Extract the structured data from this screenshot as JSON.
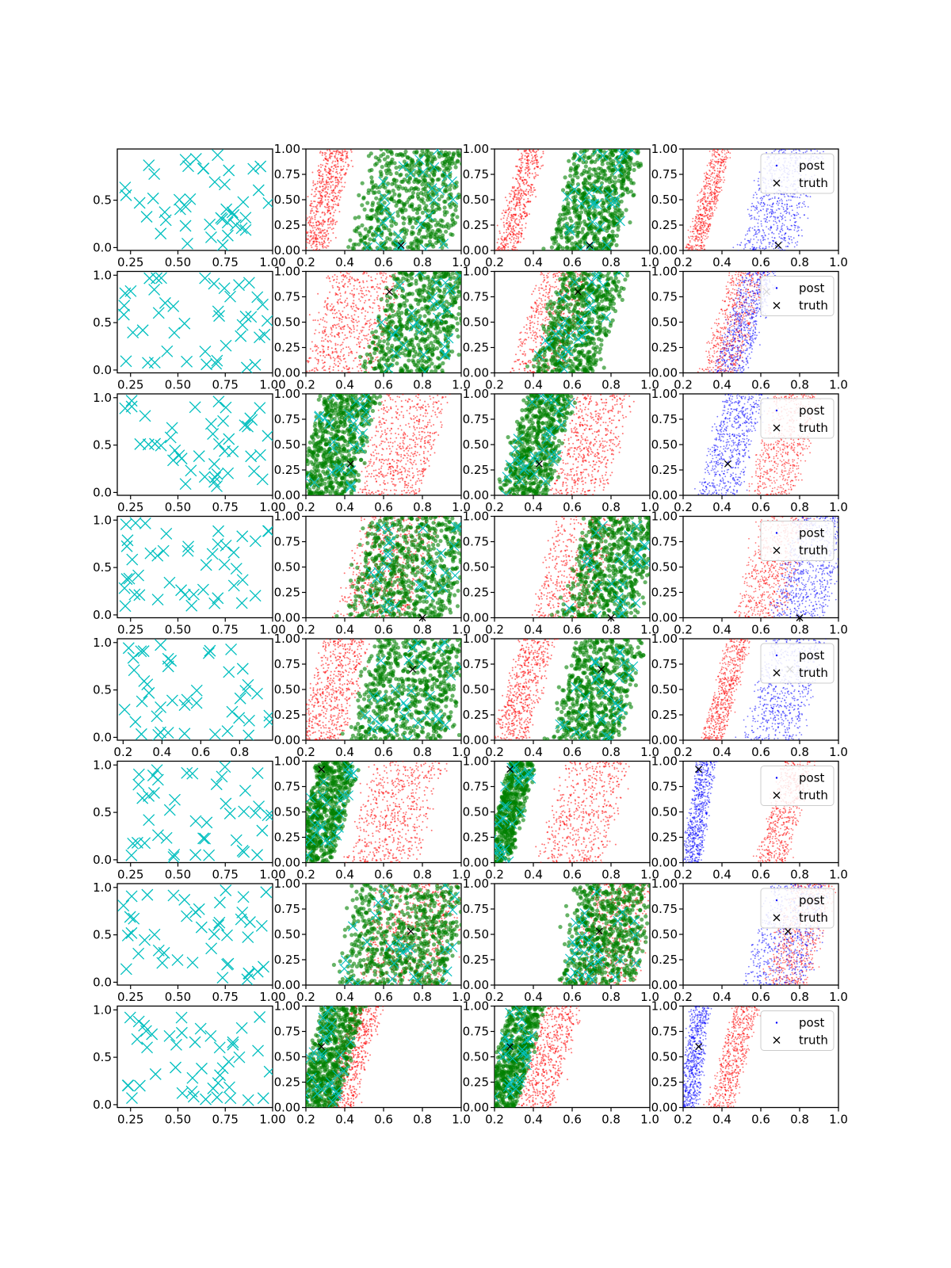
{
  "figure": {
    "rows": 8,
    "cols": 4,
    "description_colors": {
      "cyan": "#00bfbf",
      "green": "#008000",
      "red": "#ff0000",
      "blue": "#0000ff",
      "truth": "#000000"
    }
  },
  "chart_data": {
    "type": "scatter",
    "grid": false,
    "col_types": [
      "design_points",
      "samples_overlay",
      "samples_overlay",
      "posterior_vs_truth"
    ],
    "legend": {
      "entries": [
        "post",
        "truth"
      ],
      "placement": "upper right",
      "column": 3
    },
    "rows": [
      {
        "truth": [
          0.69,
          0.05
        ],
        "col0_xticks": [
          "0.25",
          "0.50",
          "0.75",
          "1.00"
        ],
        "col0_yticks": [
          "0.0",
          "0.5"
        ],
        "red": {
          "center": 0.3,
          "width": 0.16,
          "slope": 0.12,
          "n": 600,
          "spread": 0.06
        },
        "green_a": {
          "center": 0.74,
          "width": 0.52,
          "slope": 0.12,
          "n": 650,
          "spread": 0.12
        },
        "green_b": {
          "center": 0.72,
          "width": 0.36,
          "slope": 0.14,
          "n": 650,
          "spread": 0.08
        },
        "red_b": {
          "center": 0.33,
          "width": 0.12,
          "slope": 0.14,
          "n": 500,
          "spread": 0.05
        },
        "blue": {
          "center": 0.7,
          "width": 0.3,
          "slope": 0.14,
          "n": 700,
          "spread": 0.07
        },
        "red_p": {
          "center": 0.33,
          "width": 0.1,
          "slope": 0.14,
          "n": 600,
          "spread": 0.04
        }
      },
      {
        "truth": [
          0.63,
          0.8
        ],
        "col0_xticks": [
          "0.25",
          "0.50",
          "0.75",
          "1.00"
        ],
        "col0_yticks": [
          "0.0",
          "0.5",
          "1.0"
        ],
        "red": {
          "center": 0.45,
          "width": 0.4,
          "slope": 0.16,
          "n": 650,
          "spread": 0.1
        },
        "green_a": {
          "center": 0.78,
          "width": 0.46,
          "slope": 0.16,
          "n": 650,
          "spread": 0.1
        },
        "green_b": {
          "center": 0.63,
          "width": 0.34,
          "slope": 0.16,
          "n": 650,
          "spread": 0.08
        },
        "red_b": {
          "center": 0.5,
          "width": 0.3,
          "slope": 0.16,
          "n": 550,
          "spread": 0.08
        },
        "blue": {
          "center": 0.52,
          "width": 0.18,
          "slope": 0.16,
          "n": 650,
          "spread": 0.05
        },
        "red_p": {
          "center": 0.46,
          "width": 0.2,
          "slope": 0.16,
          "n": 600,
          "spread": 0.05
        }
      },
      {
        "truth": [
          0.43,
          0.31
        ],
        "col0_xticks": [
          "0.25",
          "0.50",
          "0.75",
          "1.00"
        ],
        "col0_yticks": [
          "0.0",
          "0.5",
          "1.0"
        ],
        "red": {
          "center": 0.7,
          "width": 0.36,
          "slope": 0.14,
          "n": 600,
          "spread": 0.08
        },
        "green_a": {
          "center": 0.36,
          "width": 0.3,
          "slope": 0.14,
          "n": 650,
          "spread": 0.07
        },
        "green_b": {
          "center": 0.42,
          "width": 0.26,
          "slope": 0.14,
          "n": 600,
          "spread": 0.07
        },
        "red_b": {
          "center": 0.7,
          "width": 0.3,
          "slope": 0.14,
          "n": 550,
          "spread": 0.08
        },
        "blue": {
          "center": 0.45,
          "width": 0.22,
          "slope": 0.14,
          "n": 650,
          "spread": 0.06
        },
        "red_p": {
          "center": 0.72,
          "width": 0.26,
          "slope": 0.14,
          "n": 600,
          "spread": 0.07
        }
      },
      {
        "truth": [
          0.8,
          0.0
        ],
        "col0_xticks": [
          "0.25",
          "0.50",
          "0.75",
          "1.00"
        ],
        "col0_yticks": [
          "0.0",
          "0.5",
          "1.0"
        ],
        "red": {
          "center": 0.62,
          "width": 0.4,
          "slope": 0.14,
          "n": 650,
          "spread": 0.11
        },
        "green_a": {
          "center": 0.74,
          "width": 0.56,
          "slope": 0.14,
          "n": 700,
          "spread": 0.13
        },
        "green_b": {
          "center": 0.8,
          "width": 0.4,
          "slope": 0.14,
          "n": 650,
          "spread": 0.1
        },
        "red_b": {
          "center": 0.62,
          "width": 0.34,
          "slope": 0.14,
          "n": 550,
          "spread": 0.09
        },
        "blue": {
          "center": 0.86,
          "width": 0.3,
          "slope": 0.14,
          "n": 700,
          "spread": 0.07
        },
        "red_p": {
          "center": 0.66,
          "width": 0.26,
          "slope": 0.14,
          "n": 600,
          "spread": 0.08
        }
      },
      {
        "truth": [
          0.75,
          0.7
        ],
        "col0_xticks": [
          "0.2",
          "0.4",
          "0.6",
          "0.8"
        ],
        "col0_yticks": [
          "0.0",
          "0.5",
          "1.0"
        ],
        "red": {
          "center": 0.34,
          "width": 0.26,
          "slope": 0.14,
          "n": 600,
          "spread": 0.07
        },
        "green_a": {
          "center": 0.74,
          "width": 0.52,
          "slope": 0.14,
          "n": 700,
          "spread": 0.12
        },
        "green_b": {
          "center": 0.73,
          "width": 0.36,
          "slope": 0.14,
          "n": 650,
          "spread": 0.09
        },
        "red_b": {
          "center": 0.35,
          "width": 0.18,
          "slope": 0.14,
          "n": 550,
          "spread": 0.06
        },
        "blue": {
          "center": 0.72,
          "width": 0.3,
          "slope": 0.14,
          "n": 650,
          "spread": 0.08
        },
        "red_p": {
          "center": 0.42,
          "width": 0.12,
          "slope": 0.14,
          "n": 600,
          "spread": 0.04
        }
      },
      {
        "truth": [
          0.28,
          0.92
        ],
        "col0_xticks": [
          "0.25",
          "0.50",
          "0.75",
          "1.00"
        ],
        "col0_yticks": [
          "0.0",
          "0.5",
          "1.0"
        ],
        "red": {
          "center": 0.66,
          "width": 0.38,
          "slope": 0.14,
          "n": 600,
          "spread": 0.09
        },
        "green_a": {
          "center": 0.3,
          "width": 0.22,
          "slope": 0.14,
          "n": 650,
          "spread": 0.05
        },
        "green_b": {
          "center": 0.28,
          "width": 0.14,
          "slope": 0.14,
          "n": 550,
          "spread": 0.04
        },
        "red_b": {
          "center": 0.66,
          "width": 0.36,
          "slope": 0.14,
          "n": 550,
          "spread": 0.09
        },
        "blue": {
          "center": 0.28,
          "width": 0.1,
          "slope": 0.08,
          "n": 650,
          "spread": 0.03
        },
        "red_p": {
          "center": 0.72,
          "width": 0.16,
          "slope": 0.14,
          "n": 600,
          "spread": 0.05
        }
      },
      {
        "truth": [
          0.74,
          0.53
        ],
        "col0_xticks": [
          "0.25",
          "0.50",
          "0.75",
          "1.00"
        ],
        "col0_yticks": [
          "0.0",
          "0.5",
          "1.0"
        ],
        "red": {
          "center": 0.74,
          "width": 0.46,
          "slope": 0.1,
          "n": 650,
          "spread": 0.11
        },
        "green_a": {
          "center": 0.7,
          "width": 0.6,
          "slope": 0.1,
          "n": 700,
          "spread": 0.15
        },
        "green_b": {
          "center": 0.78,
          "width": 0.4,
          "slope": 0.1,
          "n": 650,
          "spread": 0.11
        },
        "red_b": {
          "center": 0.8,
          "width": 0.34,
          "slope": 0.1,
          "n": 550,
          "spread": 0.09
        },
        "blue": {
          "center": 0.74,
          "width": 0.34,
          "slope": 0.14,
          "n": 650,
          "spread": 0.09
        },
        "red_p": {
          "center": 0.8,
          "width": 0.24,
          "slope": 0.14,
          "n": 600,
          "spread": 0.07
        }
      },
      {
        "truth": [
          0.28,
          0.6
        ],
        "col0_xticks": [
          "0.25",
          "0.50",
          "0.75",
          "1.00"
        ],
        "col0_yticks": [
          "0.0",
          "0.5",
          "1.0"
        ],
        "red": {
          "center": 0.44,
          "width": 0.16,
          "slope": 0.14,
          "n": 600,
          "spread": 0.05
        },
        "green_a": {
          "center": 0.32,
          "width": 0.22,
          "slope": 0.14,
          "n": 650,
          "spread": 0.05
        },
        "green_b": {
          "center": 0.3,
          "width": 0.18,
          "slope": 0.14,
          "n": 600,
          "spread": 0.05
        },
        "red_b": {
          "center": 0.48,
          "width": 0.2,
          "slope": 0.14,
          "n": 550,
          "spread": 0.06
        },
        "blue": {
          "center": 0.26,
          "width": 0.1,
          "slope": 0.06,
          "n": 650,
          "spread": 0.03
        },
        "red_p": {
          "center": 0.46,
          "width": 0.14,
          "slope": 0.14,
          "n": 600,
          "spread": 0.04
        }
      }
    ],
    "col1_xticks": [
      "0.2",
      "0.4",
      "0.6",
      "0.8",
      "1.0"
    ],
    "col1_yticks": [
      "0.00",
      "0.25",
      "0.50",
      "0.75",
      "1.00"
    ],
    "xlim": [
      0.2,
      1.0
    ],
    "ylim": [
      0.0,
      1.0
    ]
  }
}
